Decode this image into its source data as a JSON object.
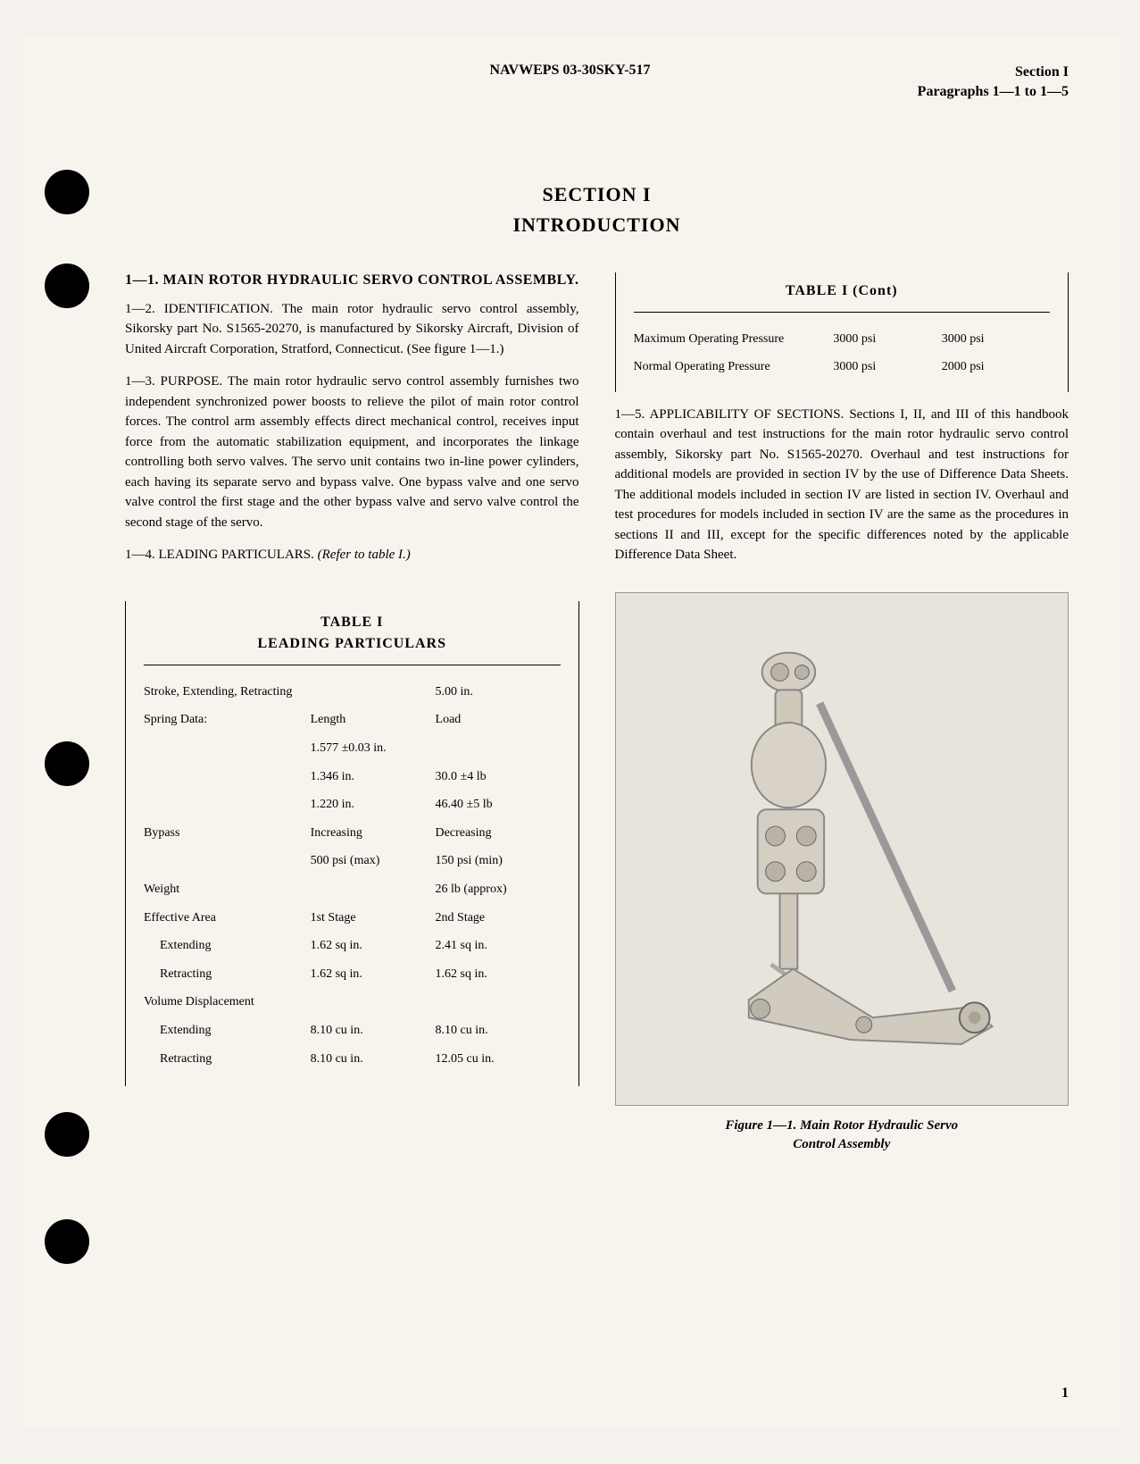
{
  "header": {
    "center": "NAVWEPS 03-30SKY-517",
    "right_line1": "Section I",
    "right_line2": "Paragraphs 1—1 to 1—5"
  },
  "titles": {
    "section": "SECTION I",
    "intro": "INTRODUCTION"
  },
  "heading_1_1": "1—1. MAIN ROTOR HYDRAULIC SERVO CONTROL ASSEMBLY.",
  "para_1_2": "1—2. IDENTIFICATION. The main rotor hydraulic servo control assembly, Sikorsky part No. S1565-20270, is manufactured by Sikorsky Aircraft, Division of United Aircraft Corporation, Stratford, Connecticut. (See figure 1—1.)",
  "para_1_3": "1—3. PURPOSE. The main rotor hydraulic servo control assembly furnishes two independent synchronized power boosts to relieve the pilot of main rotor control forces. The control arm assembly effects direct mechanical control, receives input force from the automatic stabilization equipment, and incorporates the linkage controlling both servo valves. The servo unit contains two in-line power cylinders, each having its separate servo and bypass valve. One bypass valve and one servo valve control the first stage and the other bypass valve and servo valve control the second stage of the servo.",
  "para_1_4_prefix": "1—4. LEADING PARTICULARS. ",
  "para_1_4_italic": "(Refer to table I.)",
  "para_1_5": "1—5. APPLICABILITY OF SECTIONS. Sections I, II, and III of this handbook contain overhaul and test instructions for the main rotor hydraulic servo control assembly, Sikorsky part No. S1565-20270. Overhaul and test instructions for additional models are provided in section IV by the use of Difference Data Sheets. The additional models included in section IV are listed in section IV. Overhaul and test procedures for models included in section IV are the same as the procedures in sections II and III, except for the specific differences noted by the applicable Difference Data Sheet.",
  "table1": {
    "title": "TABLE I",
    "subtitle": "LEADING PARTICULARS",
    "rows": [
      {
        "c1": "Stroke, Extending, Retracting",
        "c2": "",
        "c3": "5.00 in."
      },
      {
        "c1": "Spring Data:",
        "c2": "Length",
        "c3": "Load"
      },
      {
        "c1": "",
        "c2": "1.577 ±0.03 in.",
        "c3": ""
      },
      {
        "c1": "",
        "c2": "1.346 in.",
        "c3": "30.0 ±4 lb"
      },
      {
        "c1": "",
        "c2": "1.220 in.",
        "c3": "46.40 ±5 lb"
      },
      {
        "c1": "Bypass",
        "c2": "Increasing",
        "c3": "Decreasing"
      },
      {
        "c1": "",
        "c2": "500 psi (max)",
        "c3": "150 psi (min)"
      },
      {
        "c1": "Weight",
        "c2": "",
        "c3": "26 lb (approx)"
      },
      {
        "c1": "Effective Area",
        "c2": "1st Stage",
        "c3": "2nd Stage"
      },
      {
        "c1": "Extending",
        "c2": "1.62 sq in.",
        "c3": "2.41 sq in.",
        "indent": true
      },
      {
        "c1": "Retracting",
        "c2": "1.62 sq in.",
        "c3": "1.62 sq in.",
        "indent": true
      },
      {
        "c1": "Volume Displacement",
        "c2": "",
        "c3": ""
      },
      {
        "c1": "Extending",
        "c2": "8.10 cu in.",
        "c3": "8.10 cu in.",
        "indent": true
      },
      {
        "c1": "Retracting",
        "c2": "8.10 cu in.",
        "c3": "12.05 cu in.",
        "indent": true
      }
    ]
  },
  "table1_cont": {
    "title": "TABLE I (Cont)",
    "rows": [
      {
        "c1": "Maximum Operating Pressure",
        "c2": "3000 psi",
        "c3": "3000 psi"
      },
      {
        "c1": "Normal Operating Pressure",
        "c2": "3000 psi",
        "c3": "2000 psi"
      }
    ]
  },
  "figure": {
    "caption_line1": "Figure 1—1. Main Rotor Hydraulic Servo",
    "caption_line2": "Control Assembly"
  },
  "page_number": "1",
  "punch_holes": [
    150,
    255,
    790,
    1205,
    1325
  ],
  "colors": {
    "page_bg": "#f7f4ee",
    "figure_bg": "#e8e4db",
    "text": "#000000"
  }
}
